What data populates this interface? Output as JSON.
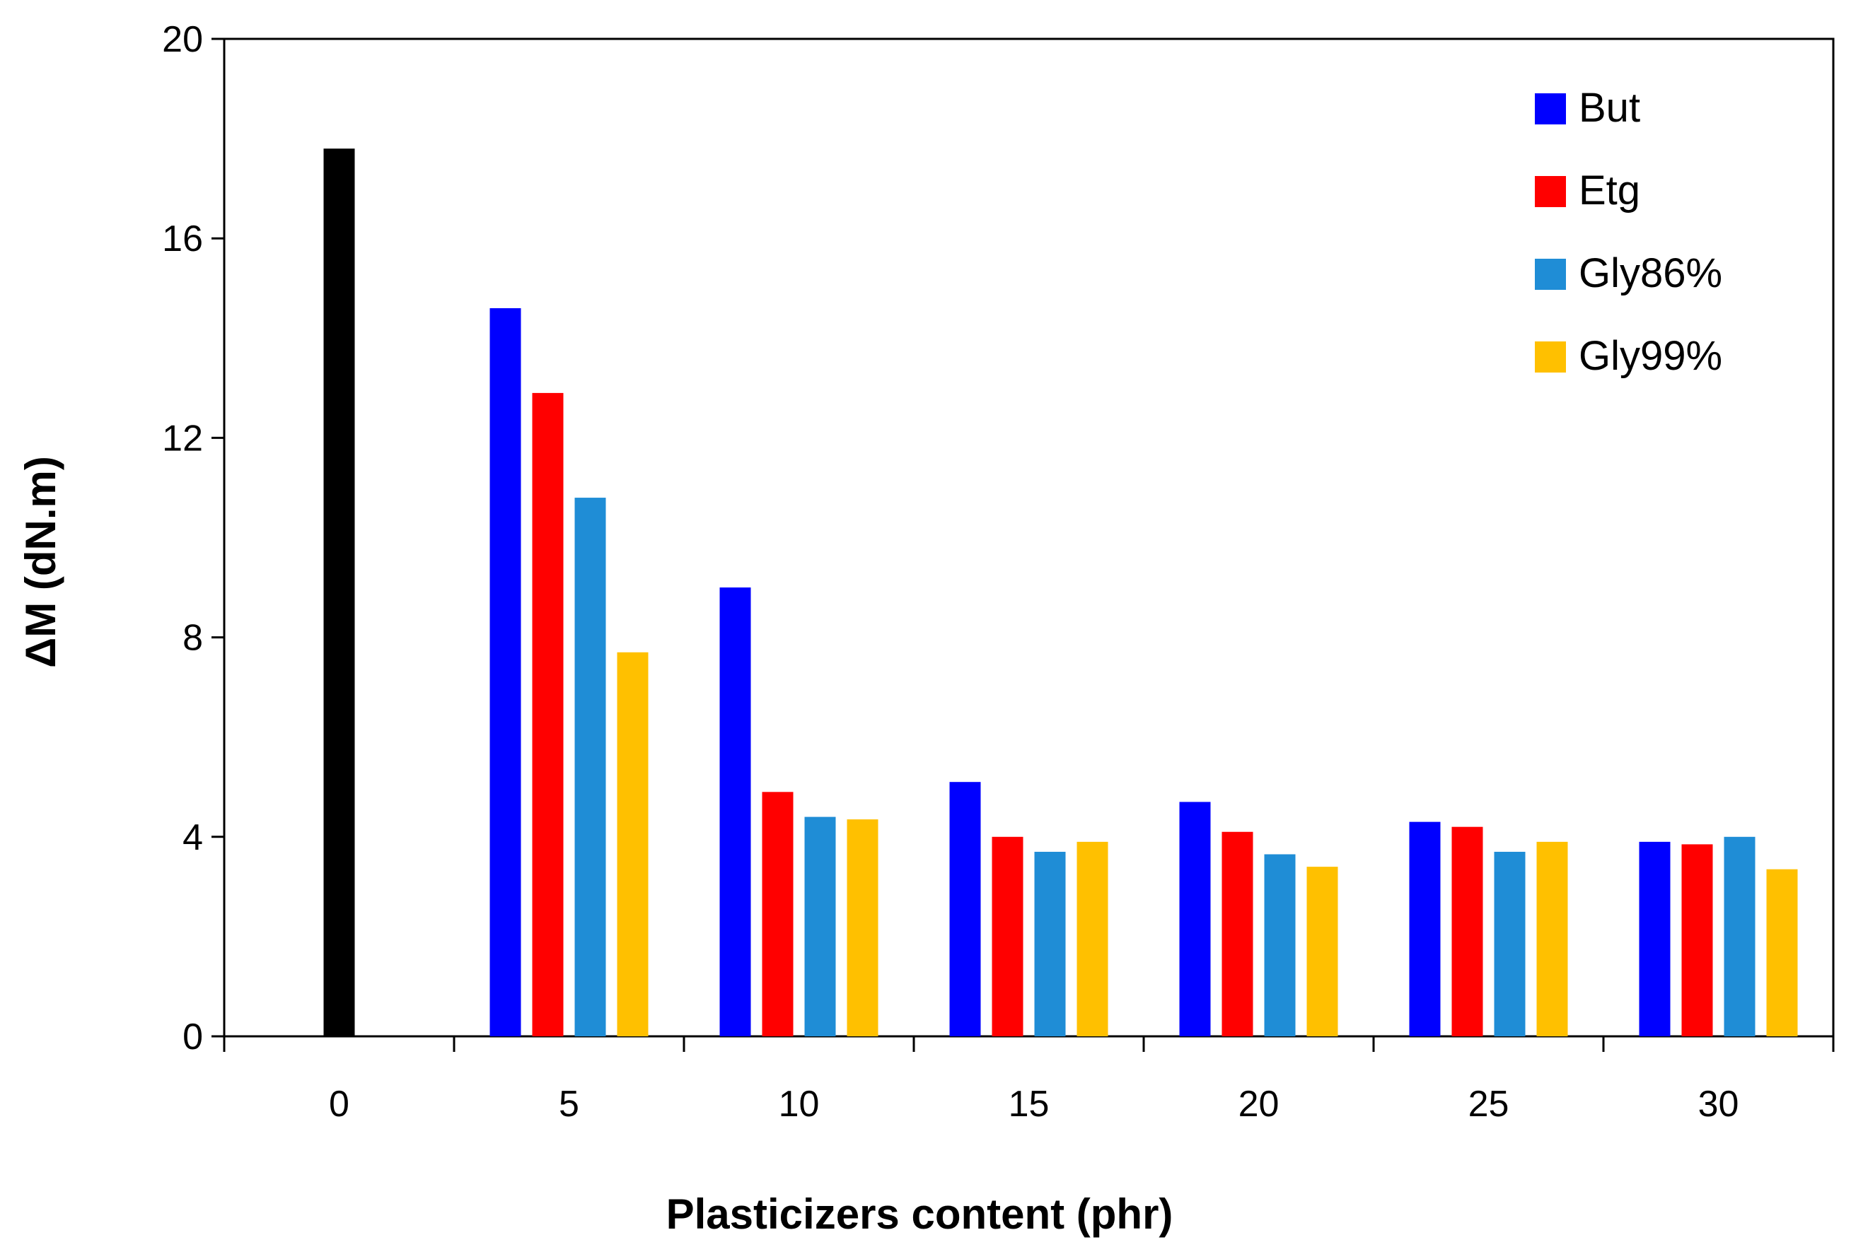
{
  "chart_data": {
    "type": "bar",
    "xlabel": "Plasticizers content (phr)",
    "ylabel": "ΔM (dN.m)",
    "ylim": [
      0,
      20
    ],
    "yticks": [
      0,
      4,
      8,
      12,
      16,
      20
    ],
    "categories": [
      "0",
      "5",
      "10",
      "15",
      "20",
      "25",
      "30"
    ],
    "control": {
      "category": "0",
      "value": 17.8,
      "color": "#000000"
    },
    "series": [
      {
        "name": "But",
        "color": "#0000FF",
        "values": [
          null,
          14.6,
          9.0,
          5.1,
          4.7,
          4.3,
          3.9
        ]
      },
      {
        "name": "Etg",
        "color": "#FF0000",
        "values": [
          null,
          12.9,
          4.9,
          4.0,
          4.1,
          4.2,
          3.85
        ]
      },
      {
        "name": "Gly86%",
        "color": "#1F8DD6",
        "values": [
          null,
          10.8,
          4.4,
          3.7,
          3.65,
          3.7,
          4.0
        ]
      },
      {
        "name": "Gly99%",
        "color": "#FFC000",
        "values": [
          null,
          7.7,
          4.35,
          3.9,
          3.4,
          3.9,
          3.35
        ]
      }
    ],
    "grid": false,
    "legend_position": "top-right"
  }
}
